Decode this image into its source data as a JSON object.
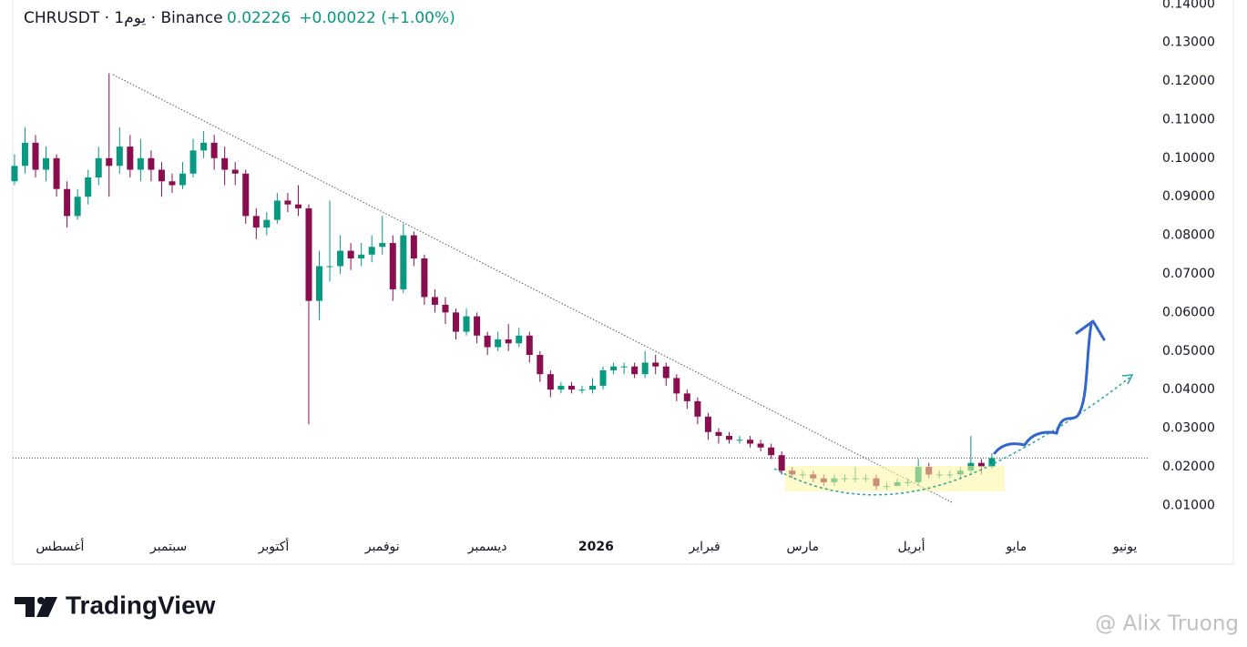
{
  "chart_data": {
    "type": "candlestick",
    "title": "CHRUSDT · 1يوم · Binance",
    "last_price": 0.02226,
    "change_label": "+0.00022 (+1.00%)",
    "up_color": "#089981",
    "down_color": "#880e4f",
    "grid": false,
    "xlim": [
      -0.5,
      324
    ],
    "ylim": [
      0.003,
      0.141
    ],
    "xticks": [
      {
        "value": 13,
        "label": "أغسطس"
      },
      {
        "value": 44,
        "label": "سبتمبر"
      },
      {
        "value": 74,
        "label": "أكتوبر"
      },
      {
        "value": 105,
        "label": "نوفمبر"
      },
      {
        "value": 135,
        "label": "ديسمبر"
      },
      {
        "value": 166,
        "label": "2026",
        "bold": true
      },
      {
        "value": 197,
        "label": "فبراير"
      },
      {
        "value": 225,
        "label": "مارس"
      },
      {
        "value": 256,
        "label": "أبريل"
      },
      {
        "value": 286,
        "label": "مايو"
      },
      {
        "value": 317,
        "label": "يونيو"
      }
    ],
    "yticks": [
      {
        "value": 0.14,
        "label": "0.14000"
      },
      {
        "value": 0.13,
        "label": "0.13000"
      },
      {
        "value": 0.12,
        "label": "0.12000"
      },
      {
        "value": 0.11,
        "label": "0.11000"
      },
      {
        "value": 0.1,
        "label": "0.10000"
      },
      {
        "value": 0.09,
        "label": "0.09000"
      },
      {
        "value": 0.08,
        "label": "0.08000"
      },
      {
        "value": 0.07,
        "label": "0.07000"
      },
      {
        "value": 0.06,
        "label": "0.06000"
      },
      {
        "value": 0.05,
        "label": "0.05000"
      },
      {
        "value": 0.04,
        "label": "0.04000"
      },
      {
        "value": 0.03,
        "label": "0.03000"
      },
      {
        "value": 0.02,
        "label": "0.02000"
      },
      {
        "value": 0.01,
        "label": "0.01000"
      }
    ],
    "x": [
      0,
      3,
      6,
      9,
      12,
      15,
      18,
      21,
      24,
      27,
      30,
      33,
      36,
      39,
      42,
      45,
      48,
      51,
      54,
      57,
      60,
      63,
      66,
      69,
      72,
      75,
      78,
      81,
      84,
      87,
      90,
      93,
      96,
      99,
      102,
      105,
      108,
      111,
      114,
      117,
      120,
      123,
      126,
      129,
      132,
      135,
      138,
      141,
      144,
      147,
      150,
      153,
      156,
      159,
      162,
      165,
      168,
      171,
      174,
      177,
      180,
      183,
      186,
      189,
      192,
      195,
      198,
      201,
      204,
      207,
      210,
      213,
      216,
      219,
      222,
      225,
      228,
      231,
      234,
      237,
      240,
      243,
      246,
      249,
      252,
      255,
      258,
      261,
      264,
      267,
      270,
      273,
      276,
      279
    ],
    "open": [
      0.094,
      0.098,
      0.104,
      0.097,
      0.1,
      0.092,
      0.085,
      0.09,
      0.095,
      0.1,
      0.098,
      0.103,
      0.097,
      0.1,
      0.097,
      0.094,
      0.093,
      0.096,
      0.102,
      0.104,
      0.1,
      0.097,
      0.096,
      0.085,
      0.082,
      0.084,
      0.089,
      0.088,
      0.087,
      0.063,
      0.072,
      0.072,
      0.076,
      0.074,
      0.075,
      0.077,
      0.078,
      0.066,
      0.08,
      0.074,
      0.064,
      0.062,
      0.06,
      0.055,
      0.059,
      0.054,
      0.051,
      0.053,
      0.052,
      0.054,
      0.049,
      0.044,
      0.04,
      0.041,
      0.04,
      0.04,
      0.041,
      0.045,
      0.046,
      0.046,
      0.044,
      0.047,
      0.046,
      0.043,
      0.039,
      0.037,
      0.033,
      0.029,
      0.028,
      0.027,
      0.027,
      0.026,
      0.025,
      0.023,
      0.019,
      0.018,
      0.018,
      0.017,
      0.016,
      0.017,
      0.017,
      0.017,
      0.017,
      0.015,
      0.015,
      0.016,
      0.016,
      0.02,
      0.018,
      0.018,
      0.018,
      0.019,
      0.021,
      0.02
    ],
    "high": [
      0.101,
      0.108,
      0.106,
      0.103,
      0.101,
      0.094,
      0.092,
      0.097,
      0.103,
      0.122,
      0.108,
      0.106,
      0.105,
      0.102,
      0.099,
      0.096,
      0.099,
      0.105,
      0.107,
      0.106,
      0.103,
      0.099,
      0.097,
      0.087,
      0.086,
      0.091,
      0.091,
      0.093,
      0.088,
      0.076,
      0.089,
      0.08,
      0.078,
      0.078,
      0.08,
      0.085,
      0.08,
      0.083,
      0.081,
      0.075,
      0.066,
      0.064,
      0.061,
      0.061,
      0.06,
      0.055,
      0.055,
      0.057,
      0.056,
      0.055,
      0.05,
      0.045,
      0.042,
      0.042,
      0.041,
      0.043,
      0.046,
      0.047,
      0.047,
      0.047,
      0.05,
      0.049,
      0.047,
      0.044,
      0.04,
      0.038,
      0.034,
      0.03,
      0.029,
      0.028,
      0.028,
      0.027,
      0.026,
      0.024,
      0.02,
      0.019,
      0.019,
      0.018,
      0.018,
      0.018,
      0.02,
      0.018,
      0.018,
      0.016,
      0.017,
      0.017,
      0.022,
      0.021,
      0.019,
      0.019,
      0.02,
      0.028,
      0.022,
      0.0235
    ],
    "low": [
      0.093,
      0.096,
      0.095,
      0.094,
      0.09,
      0.082,
      0.084,
      0.088,
      0.093,
      0.09,
      0.096,
      0.095,
      0.094,
      0.094,
      0.09,
      0.091,
      0.092,
      0.095,
      0.1,
      0.097,
      0.093,
      0.093,
      0.083,
      0.079,
      0.08,
      0.083,
      0.086,
      0.085,
      0.031,
      0.058,
      0.068,
      0.07,
      0.071,
      0.072,
      0.073,
      0.075,
      0.063,
      0.065,
      0.072,
      0.062,
      0.06,
      0.057,
      0.053,
      0.054,
      0.052,
      0.049,
      0.05,
      0.05,
      0.051,
      0.047,
      0.042,
      0.038,
      0.039,
      0.039,
      0.039,
      0.039,
      0.04,
      0.044,
      0.044,
      0.043,
      0.043,
      0.044,
      0.041,
      0.037,
      0.035,
      0.031,
      0.027,
      0.026,
      0.026,
      0.026,
      0.025,
      0.024,
      0.022,
      0.018,
      0.017,
      0.017,
      0.016,
      0.015,
      0.015,
      0.016,
      0.016,
      0.016,
      0.014,
      0.014,
      0.015,
      0.015,
      0.015,
      0.017,
      0.017,
      0.017,
      0.017,
      0.018,
      0.018,
      0.0195
    ],
    "close": [
      0.098,
      0.104,
      0.097,
      0.1,
      0.092,
      0.085,
      0.09,
      0.095,
      0.1,
      0.098,
      0.103,
      0.097,
      0.1,
      0.097,
      0.094,
      0.093,
      0.096,
      0.102,
      0.104,
      0.1,
      0.097,
      0.096,
      0.085,
      0.082,
      0.084,
      0.089,
      0.088,
      0.087,
      0.063,
      0.072,
      0.072,
      0.076,
      0.074,
      0.075,
      0.077,
      0.078,
      0.066,
      0.08,
      0.074,
      0.064,
      0.062,
      0.06,
      0.055,
      0.059,
      0.054,
      0.051,
      0.053,
      0.052,
      0.054,
      0.049,
      0.044,
      0.04,
      0.041,
      0.04,
      0.04,
      0.041,
      0.045,
      0.046,
      0.046,
      0.044,
      0.047,
      0.046,
      0.043,
      0.039,
      0.037,
      0.033,
      0.029,
      0.028,
      0.027,
      0.027,
      0.026,
      0.025,
      0.023,
      0.019,
      0.018,
      0.018,
      0.017,
      0.016,
      0.017,
      0.017,
      0.017,
      0.017,
      0.015,
      0.015,
      0.016,
      0.016,
      0.02,
      0.018,
      0.018,
      0.018,
      0.019,
      0.021,
      0.02,
      0.02226
    ]
  },
  "branding": "TradingView",
  "watermark": "@ Alix Truong"
}
